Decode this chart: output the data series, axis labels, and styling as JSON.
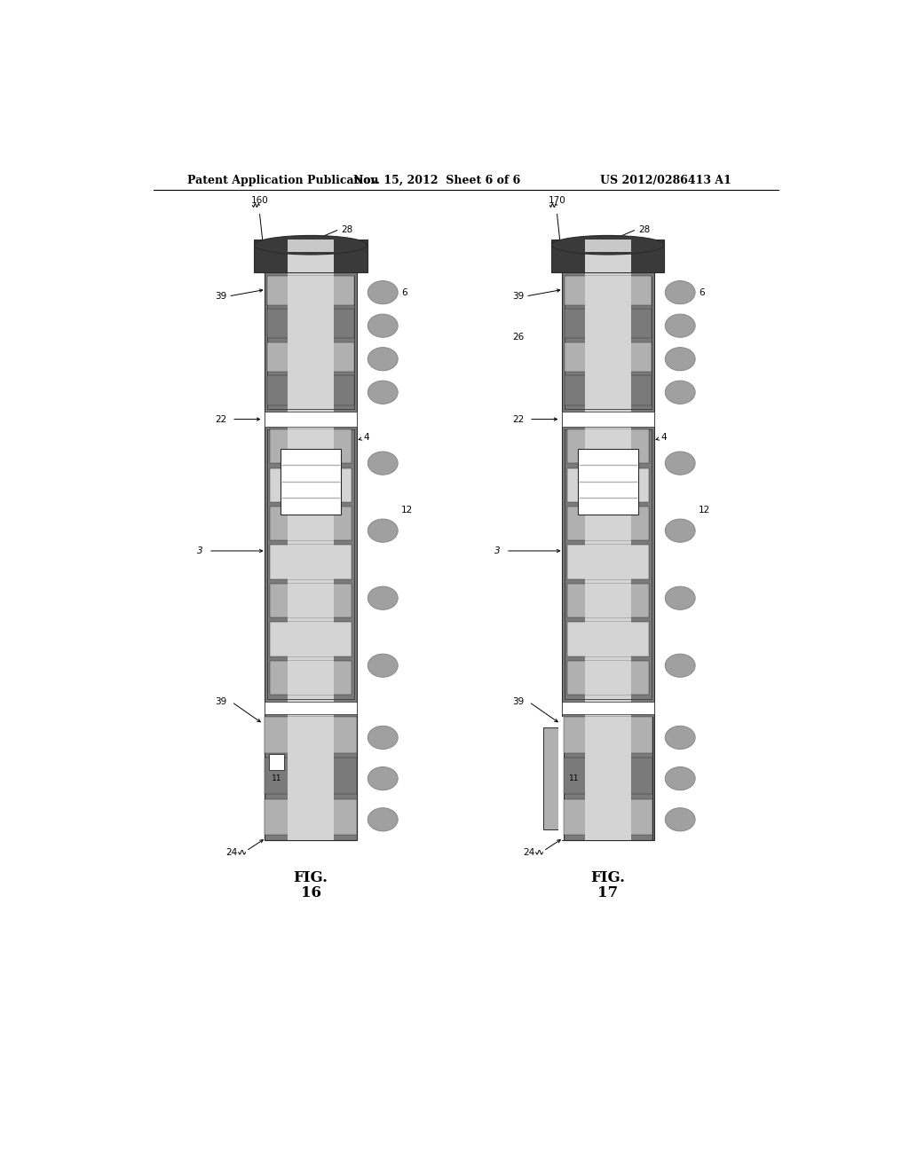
{
  "bg_color": "#ffffff",
  "header_text": "Patent Application Publication",
  "header_date": "Nov. 15, 2012  Sheet 6 of 6",
  "header_patent": "US 2012/0286413 A1",
  "colors": {
    "dark_gray": "#4a4a4a",
    "medium_gray": "#7a7a7a",
    "light_gray": "#b0b0b0",
    "very_light_gray": "#d4d4d4",
    "stripe_gray": "#c8c8c8",
    "ball_gray": "#a0a0a0",
    "ball_dark": "#888888",
    "outline": "#2a2a2a",
    "white": "#ffffff",
    "cap_dark": "#3a3a3a",
    "substrate_bg": "#909090"
  }
}
